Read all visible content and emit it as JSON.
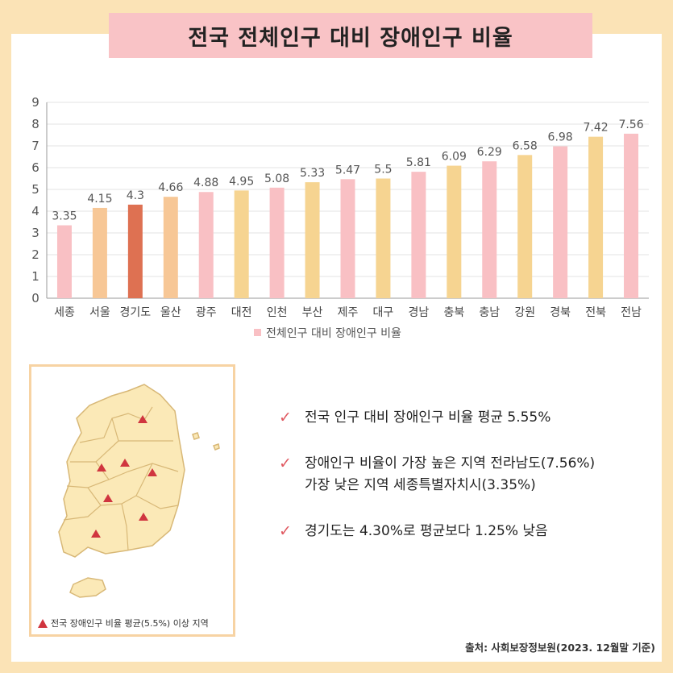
{
  "title": "전국 전체인구 대비 장애인구 비율",
  "chart_data": {
    "type": "bar",
    "categories": [
      "세종",
      "서울",
      "경기도",
      "울산",
      "광주",
      "대전",
      "인천",
      "부산",
      "제주",
      "대구",
      "경남",
      "충북",
      "충남",
      "강원",
      "경북",
      "전북",
      "전남"
    ],
    "values": [
      3.35,
      4.15,
      4.3,
      4.66,
      4.88,
      4.95,
      5.08,
      5.33,
      5.47,
      5.5,
      5.81,
      6.09,
      6.29,
      6.58,
      6.98,
      7.42,
      7.56
    ],
    "value_labels": [
      "3.35",
      "4.15",
      "4.3",
      "4.66",
      "4.88",
      "4.95",
      "5.08",
      "5.33",
      "5.47",
      "5.5",
      "5.81",
      "6.09",
      "6.29",
      "6.58",
      "6.98",
      "7.42",
      "7.56"
    ],
    "colors": [
      "#f9c0c4",
      "#f7c796",
      "#de7152",
      "#f7c796",
      "#f9c0c4",
      "#f6d491",
      "#f9c0c4",
      "#f6d491",
      "#f9c0c4",
      "#f6d491",
      "#f9c0c4",
      "#f6d491",
      "#f9c0c4",
      "#f6d491",
      "#f9c0c4",
      "#f6d491",
      "#f9c0c4"
    ],
    "ylim": [
      0,
      9
    ],
    "yticks": [
      "0",
      "1",
      "2",
      "3",
      "4",
      "5",
      "6",
      "7",
      "8",
      "9"
    ],
    "legend": "전체인구 대비 장애인구 비율",
    "legend_color": "#f9c0c4",
    "grid": true
  },
  "map": {
    "legend": "전국 장애인구 비율 평균(5.5%) 이상 지역",
    "marker_color": "#d0353f"
  },
  "bullets": [
    {
      "line1": "전국 인구 대비 장애인구 비율 평균 5.55%",
      "line2": ""
    },
    {
      "line1": "장애인구 비율이 가장 높은 지역 전라남도(7.56%)",
      "line2": "가장 낮은 지역 세종특별자치시(3.35%)"
    },
    {
      "line1": "경기도는 4.30%로 평균보다 1.25% 낮음",
      "line2": ""
    }
  ],
  "source": "출처: 사회보장정보원(2023. 12월말 기준)"
}
